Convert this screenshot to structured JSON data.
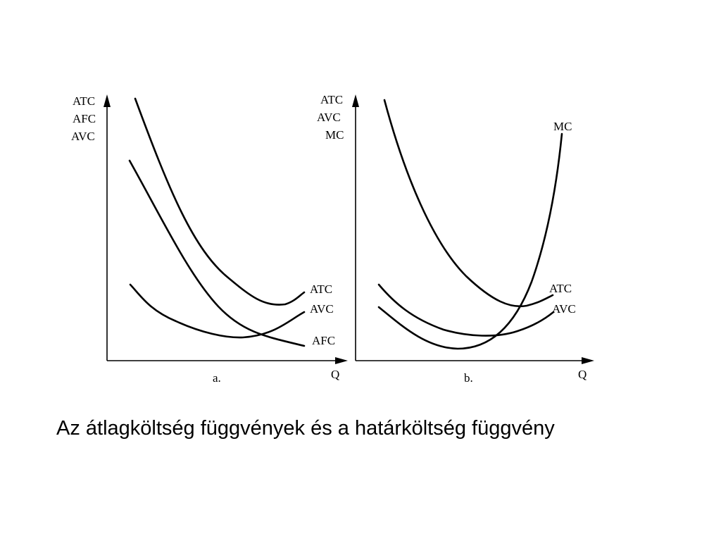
{
  "caption": "Az átlagköltség függvények és a határköltség függvény",
  "panel_a": {
    "y_axis_labels": [
      "ATC",
      "AFC",
      "AVC"
    ],
    "x_axis_label": "Q",
    "panel_label": "a.",
    "curve_labels": {
      "atc": "ATC",
      "avc": "AVC",
      "afc": "AFC"
    }
  },
  "panel_b": {
    "y_axis_labels": [
      "ATC",
      "AVC",
      "MC"
    ],
    "x_axis_label": "Q",
    "panel_label": "b.",
    "curve_labels": {
      "mc": "MC",
      "atc": "ATC",
      "avc": "AVC"
    }
  }
}
